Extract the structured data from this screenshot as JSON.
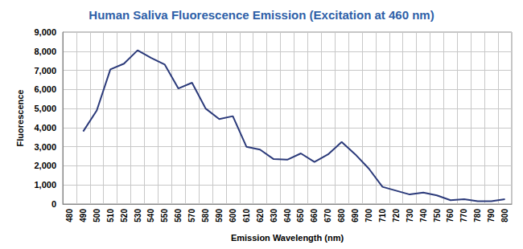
{
  "chart_data": {
    "type": "line",
    "title": "Human Saliva Fluorescence Emission (Excitation at 460 nm)",
    "x_label": "Emission Wavelength (nm)",
    "y_label": "Fluorescence",
    "categories": [
      "480",
      "490",
      "500",
      "510",
      "520",
      "530",
      "540",
      "550",
      "560",
      "570",
      "580",
      "590",
      "600",
      "610",
      "620",
      "630",
      "640",
      "650",
      "660",
      "670",
      "680",
      "690",
      "700",
      "710",
      "720",
      "730",
      "740",
      "750",
      "760",
      "770",
      "780",
      "790",
      "800"
    ],
    "values": [
      null,
      3800,
      4900,
      7050,
      7350,
      8050,
      7650,
      7300,
      6050,
      6350,
      5000,
      4450,
      4600,
      3000,
      2850,
      2350,
      2320,
      2650,
      2200,
      2600,
      3250,
      2600,
      1850,
      900,
      700,
      500,
      600,
      450,
      200,
      250,
      150,
      150,
      250
    ],
    "color": "#2b3a7a",
    "ylim": [
      0,
      9000
    ],
    "yticks": [
      0,
      1000,
      2000,
      3000,
      4000,
      5000,
      6000,
      7000,
      8000,
      9000
    ],
    "grid": true
  }
}
